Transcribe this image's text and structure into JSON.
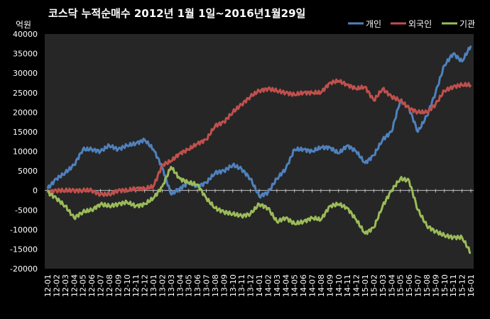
{
  "chart_data": {
    "type": "line",
    "title": "코스닥 누적순매수 2012년 1월 1일~2016년1월29일",
    "unit": "억원",
    "ylim": [
      -20000,
      40000
    ],
    "yticks": [
      40000,
      35000,
      30000,
      25000,
      20000,
      15000,
      10000,
      5000,
      0,
      -5000,
      -10000,
      -15000,
      -20000
    ],
    "x": [
      "12-01",
      "12-02",
      "12-03",
      "12-04",
      "12-05",
      "12-06",
      "12-07",
      "12-08",
      "12-09",
      "12-10",
      "12-11",
      "12-12",
      "13-01",
      "13-02",
      "13-03",
      "13-04",
      "13-05",
      "13-06",
      "13-07",
      "13-08",
      "13-09",
      "13-10",
      "13-11",
      "13-12",
      "14-01",
      "14-02",
      "14-03",
      "14-04",
      "14-05",
      "14-06",
      "14-07",
      "14-08",
      "14-09",
      "14-10",
      "14-11",
      "14-12",
      "15-01",
      "15-02",
      "15-03",
      "15-04",
      "15-05",
      "15-06",
      "15-07",
      "15-08",
      "15-09",
      "15-10",
      "15-11",
      "15-12",
      "16-01"
    ],
    "legend_position": "top-right",
    "grid": false,
    "series": [
      {
        "name": "개인",
        "color": "#4f81bd",
        "values": [
          500,
          3000,
          4500,
          6500,
          10500,
          10500,
          10000,
          11500,
          10500,
          11500,
          12000,
          13000,
          10500,
          6000,
          -1000,
          500,
          2000,
          1000,
          2000,
          4500,
          5000,
          6500,
          5500,
          3000,
          -1500,
          -500,
          3000,
          5500,
          10500,
          10500,
          10000,
          11000,
          11000,
          9500,
          11500,
          10000,
          7000,
          9000,
          13000,
          15000,
          23000,
          21000,
          15000,
          19000,
          25000,
          32000,
          35000,
          33000,
          37000
        ]
      },
      {
        "name": "외국인",
        "color": "#c0504d",
        "values": [
          -500,
          0,
          0,
          0,
          0,
          0,
          -1000,
          -1000,
          0,
          0,
          500,
          500,
          1000,
          6500,
          7500,
          9500,
          10500,
          12000,
          13000,
          16500,
          17500,
          20000,
          22000,
          24000,
          25500,
          26000,
          25500,
          25000,
          24500,
          25000,
          25000,
          25000,
          27500,
          28000,
          27000,
          26000,
          26500,
          23000,
          26000,
          24000,
          23000,
          21000,
          20000,
          20000,
          22000,
          25500,
          26500,
          27000,
          27000
        ]
      },
      {
        "name": "기관",
        "color": "#9bbb59",
        "values": [
          -500,
          -2000,
          -4000,
          -7000,
          -5500,
          -5000,
          -3500,
          -4000,
          -3500,
          -3000,
          -4000,
          -3500,
          -2000,
          1000,
          6000,
          3000,
          2000,
          1500,
          -2000,
          -4500,
          -5500,
          -6000,
          -6500,
          -6000,
          -3500,
          -4500,
          -8000,
          -7000,
          -8500,
          -8000,
          -7000,
          -7500,
          -4000,
          -3500,
          -4500,
          -7500,
          -11000,
          -9500,
          -4000,
          0,
          3000,
          2500,
          -5000,
          -9000,
          -10500,
          -11500,
          -12000,
          -12000,
          -16000
        ]
      }
    ]
  }
}
